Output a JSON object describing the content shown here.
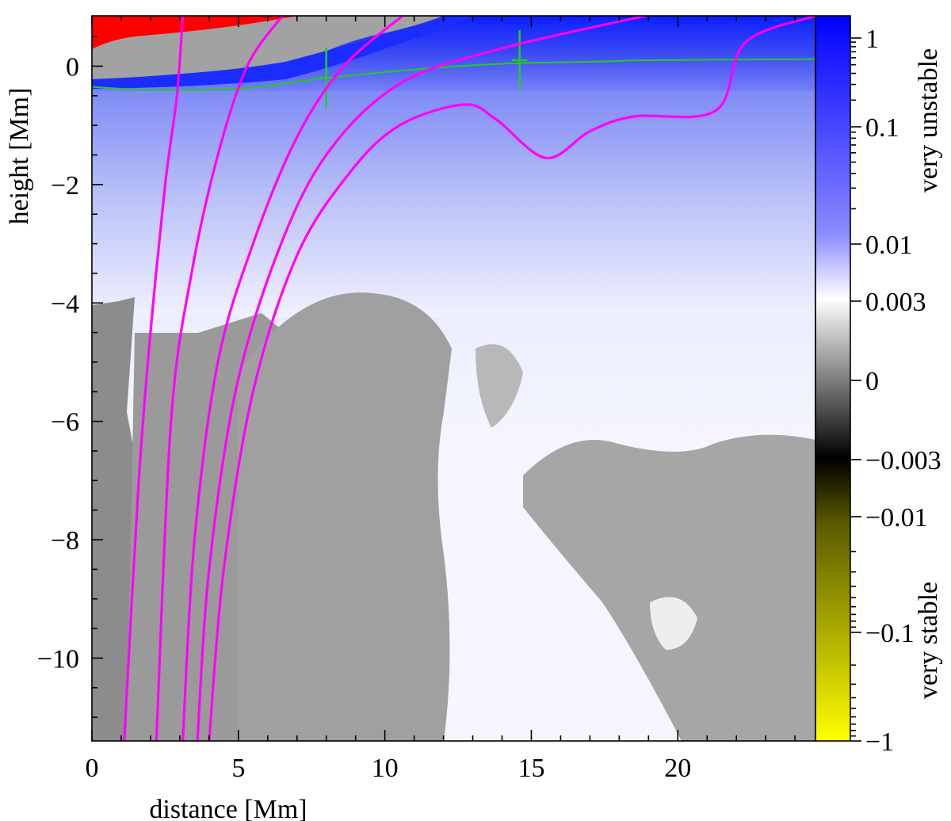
{
  "chart_data": {
    "type": "heatmap",
    "xlabel": "distance [Mm]",
    "ylabel": "height [Mm]",
    "xlim": [
      0,
      24.7
    ],
    "ylim": [
      -11.4,
      0.85
    ],
    "x_ticks": [
      0,
      5,
      10,
      15,
      20
    ],
    "y_ticks": [
      0,
      -2,
      -4,
      -6,
      -8,
      -10
    ],
    "x_tick_labels": [
      "0",
      "5",
      "10",
      "15",
      "20"
    ],
    "y_tick_labels": [
      "0",
      "−2",
      "−4",
      "−6",
      "−8",
      "−10"
    ],
    "colorbar": {
      "scale": "signed-log",
      "ticks": [
        "1",
        "0.1",
        "0.01",
        "0.003",
        "0",
        "−0.003",
        "−0.01",
        "−0.1",
        "−1"
      ],
      "top_label": "very unstable",
      "bottom_label": "very stable",
      "colors": {
        "max": "#0000ff",
        "mid": "#ffffff",
        "zero": "#808080",
        "neg_small": "#000000",
        "min": "#ffff00"
      }
    },
    "series": [
      {
        "values": [
          [
            1.1,
            -11.4
          ],
          [
            1.6,
            -7.0
          ],
          [
            2.0,
            -4.5
          ],
          [
            2.5,
            -2.0
          ],
          [
            2.9,
            -0.5
          ],
          [
            3.1,
            0.85
          ]
        ]
      },
      {
        "values": [
          [
            2.2,
            -11.4
          ],
          [
            2.7,
            -6.0
          ],
          [
            3.4,
            -3.5
          ],
          [
            4.3,
            -1.5
          ],
          [
            5.3,
            0.0
          ],
          [
            6.5,
            0.85
          ]
        ]
      },
      {
        "values": [
          [
            3.1,
            -11.4
          ],
          [
            3.5,
            -8.0
          ],
          [
            4.3,
            -5.0
          ],
          [
            5.5,
            -3.0
          ],
          [
            7.0,
            -1.2
          ],
          [
            8.6,
            0.0
          ],
          [
            10.6,
            0.85
          ]
        ]
      },
      {
        "values": [
          [
            3.6,
            -11.4
          ],
          [
            4.0,
            -8.5
          ],
          [
            4.9,
            -5.5
          ],
          [
            6.3,
            -3.2
          ],
          [
            8.0,
            -1.5
          ],
          [
            10.5,
            -0.3
          ],
          [
            14.0,
            0.3
          ],
          [
            18.9,
            0.85
          ]
        ]
      },
      {
        "values": [
          [
            4.0,
            -11.4
          ],
          [
            4.5,
            -8.5
          ],
          [
            5.5,
            -5.5
          ],
          [
            7.0,
            -3.2
          ],
          [
            8.8,
            -1.8
          ],
          [
            10.5,
            -1.0
          ],
          [
            12.7,
            -0.65
          ],
          [
            13.8,
            -0.9
          ],
          [
            15.5,
            -1.55
          ],
          [
            17.0,
            -1.1
          ],
          [
            18.5,
            -0.85
          ],
          [
            21.3,
            -0.75
          ],
          [
            22.3,
            0.4
          ],
          [
            24.7,
            0.85
          ]
        ]
      }
    ],
    "green_curve": [
      [
        0,
        -0.35
      ],
      [
        2,
        -0.4
      ],
      [
        5,
        -0.38
      ],
      [
        8,
        -0.2
      ],
      [
        10,
        -0.1
      ],
      [
        12.5,
        0.0
      ],
      [
        14.5,
        0.05
      ],
      [
        17.5,
        0.08
      ],
      [
        19,
        0.1
      ],
      [
        24.7,
        0.12
      ]
    ],
    "green_markers": [
      [
        8.0,
        -0.2
      ],
      [
        14.6,
        0.1
      ]
    ]
  }
}
